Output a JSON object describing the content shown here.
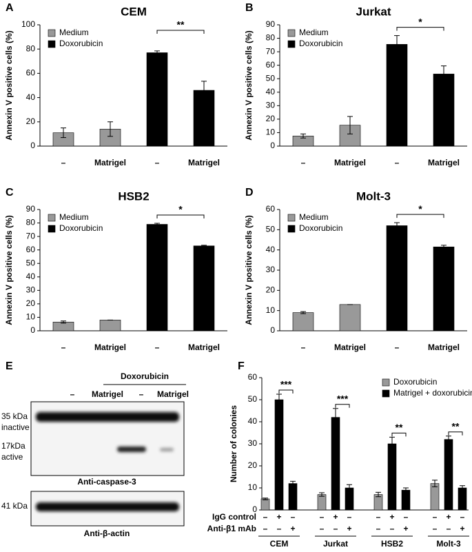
{
  "chart_data": [
    {
      "type": "bar",
      "panel": "A",
      "title": "CEM",
      "y_label": "Annexin V positive cells (%)",
      "categories": [
        "–",
        "Matrigel",
        "–",
        "Matrigel"
      ],
      "series": [
        {
          "name": "Medium",
          "color": "#999999",
          "values": [
            11,
            14,
            null,
            null
          ],
          "errors": [
            4,
            6,
            null,
            null
          ]
        },
        {
          "name": "Doxorubicin",
          "color": "#000000",
          "values": [
            null,
            null,
            77,
            46
          ],
          "errors": [
            null,
            null,
            1.5,
            7.5
          ]
        }
      ],
      "ylim": [
        0,
        100
      ],
      "yticks": [
        0,
        20,
        40,
        60,
        80,
        100
      ],
      "significance": [
        "**"
      ]
    },
    {
      "type": "bar",
      "panel": "B",
      "title": "Jurkat",
      "y_label": "Annexin V positive cells (%)",
      "categories": [
        "–",
        "Matrigel",
        "–",
        "Matrigel"
      ],
      "series": [
        {
          "name": "Medium",
          "color": "#999999",
          "values": [
            7.5,
            15.5,
            null,
            null
          ],
          "errors": [
            1.5,
            6.5,
            null,
            null
          ]
        },
        {
          "name": "Doxorubicin",
          "color": "#000000",
          "values": [
            null,
            null,
            75.5,
            53.5
          ],
          "errors": [
            null,
            null,
            6.5,
            6
          ]
        }
      ],
      "ylim": [
        0,
        90
      ],
      "yticks": [
        0,
        10,
        20,
        30,
        40,
        50,
        60,
        70,
        80,
        90
      ],
      "significance": [
        "*"
      ]
    },
    {
      "type": "bar",
      "panel": "C",
      "title": "HSB2",
      "y_label": "Annexin V positive cells (%)",
      "categories": [
        "–",
        "Matrigel",
        "–",
        "Matrigel"
      ],
      "series": [
        {
          "name": "Medium",
          "color": "#999999",
          "values": [
            6.5,
            8,
            null,
            null
          ],
          "errors": [
            0.8,
            0,
            null,
            null
          ]
        },
        {
          "name": "Doxorubicin",
          "color": "#000000",
          "values": [
            null,
            null,
            79,
            63
          ],
          "errors": [
            null,
            null,
            0.8,
            0.5
          ]
        }
      ],
      "ylim": [
        0,
        90
      ],
      "yticks": [
        0,
        10,
        20,
        30,
        40,
        50,
        60,
        70,
        80,
        90
      ],
      "significance": [
        "*"
      ]
    },
    {
      "type": "bar",
      "panel": "D",
      "title": "Molt-3",
      "y_label": "Annexin V positive cells (%)",
      "categories": [
        "–",
        "Matrigel",
        "–",
        "Matrigel"
      ],
      "series": [
        {
          "name": "Medium",
          "color": "#999999",
          "values": [
            9,
            13,
            null,
            null
          ],
          "errors": [
            0.5,
            0,
            null,
            null
          ]
        },
        {
          "name": "Doxorubicin",
          "color": "#000000",
          "values": [
            null,
            null,
            52,
            41.5
          ],
          "errors": [
            null,
            null,
            1.5,
            0.8
          ]
        }
      ],
      "ylim": [
        0,
        60
      ],
      "yticks": [
        0,
        10,
        20,
        30,
        40,
        50,
        60
      ],
      "significance": [
        "*"
      ]
    },
    {
      "type": "grouped",
      "panel": "F",
      "y_label": "Number of colonies",
      "groups": [
        "CEM",
        "Jurkat",
        "HSB2",
        "Molt-3"
      ],
      "rows": [
        {
          "label": "IgG control",
          "values": [
            "–",
            "+",
            "–",
            "–",
            "+",
            "–",
            "–",
            "+",
            "–",
            "–",
            "+",
            "–"
          ]
        },
        {
          "label": "Anti-β1 mAb",
          "values": [
            "–",
            "–",
            "+",
            "–",
            "–",
            "+",
            "–",
            "–",
            "+",
            "–",
            "–",
            "+"
          ]
        }
      ],
      "series": [
        {
          "name": "Doxorubicin",
          "color": "#999999",
          "values": [
            5,
            null,
            null,
            7,
            null,
            null,
            7,
            null,
            null,
            12,
            null,
            null
          ],
          "errors": [
            0.4,
            null,
            null,
            0.8,
            null,
            null,
            1,
            null,
            null,
            1.5,
            null,
            null
          ]
        },
        {
          "name": "Matrigel + doxorubicin",
          "color": "#000000",
          "values": [
            null,
            50,
            12,
            null,
            42,
            10,
            null,
            30,
            9,
            null,
            32,
            10
          ],
          "errors": [
            null,
            2.5,
            1,
            null,
            4,
            1.5,
            null,
            3,
            1,
            null,
            1.5,
            1
          ]
        }
      ],
      "ylim": [
        0,
        60
      ],
      "yticks": [
        0,
        10,
        20,
        30,
        40,
        50,
        60
      ],
      "significance": [
        "***",
        "***",
        "**",
        "**"
      ]
    }
  ],
  "blot": {
    "panel": "E",
    "treatment": "Doxorubicin",
    "lanes": [
      "–",
      "Matrigel",
      "–",
      "Matrigel"
    ],
    "band1_size": "35 kDa",
    "band1_state": "inactive",
    "band2_size": "17kDa",
    "band2_state": "active",
    "blot1_label": "Anti-caspase-3",
    "band3_size": "41 kDa",
    "blot2_label": "Anti-β-actin"
  }
}
